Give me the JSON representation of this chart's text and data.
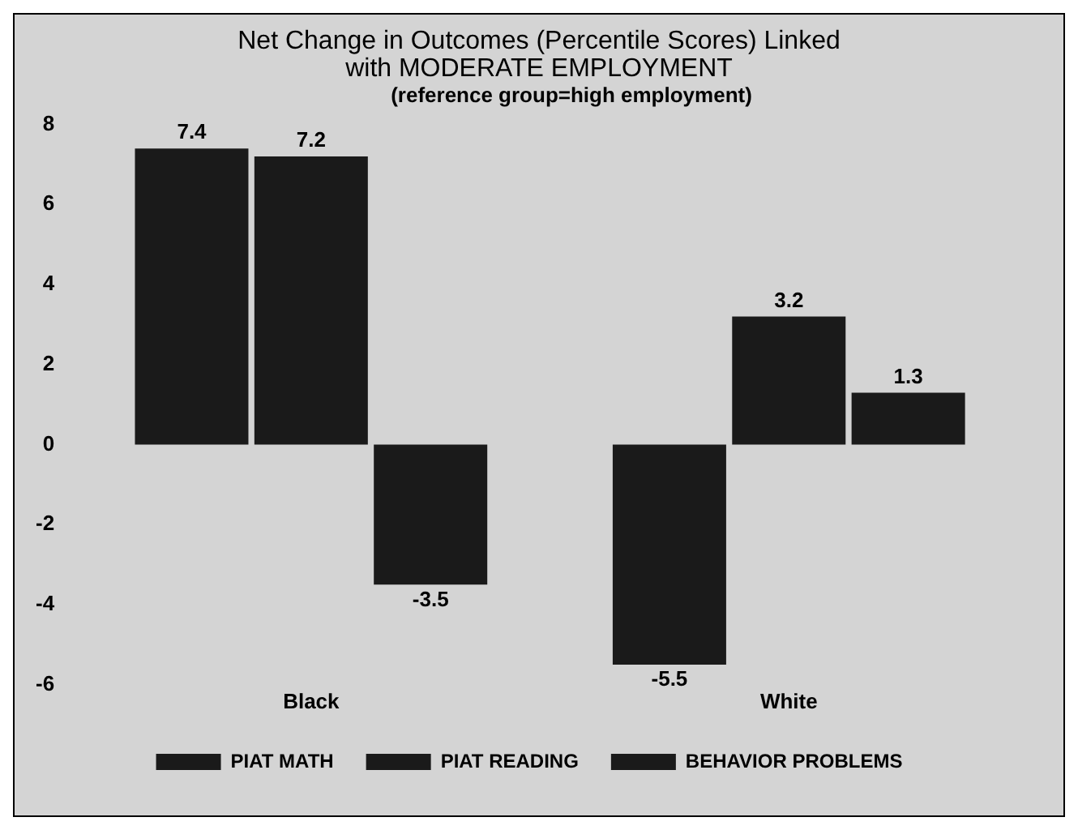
{
  "chart_data": {
    "type": "bar",
    "title": "Net Change in Outcomes (Percentile Scores) Linked with MODERATE EMPLOYMENT",
    "subtitle": "(reference group=high employment)",
    "categories": [
      "Black",
      "White"
    ],
    "series": [
      {
        "name": "PIAT MATH",
        "color": "#1a1a1a",
        "values": [
          7.4,
          -5.5
        ]
      },
      {
        "name": "PIAT READING",
        "color": "#1a1a1a",
        "values": [
          7.2,
          3.2
        ]
      },
      {
        "name": "BEHAVIOR PROBLEMS",
        "color": "#1a1a1a",
        "values": [
          -3.5,
          1.3
        ]
      }
    ],
    "ylim": [
      -6,
      8
    ],
    "yticks": [
      -6,
      -4,
      -2,
      0,
      2,
      4,
      6,
      8
    ],
    "grid": false,
    "legend": "bottom",
    "data_labels": true
  }
}
